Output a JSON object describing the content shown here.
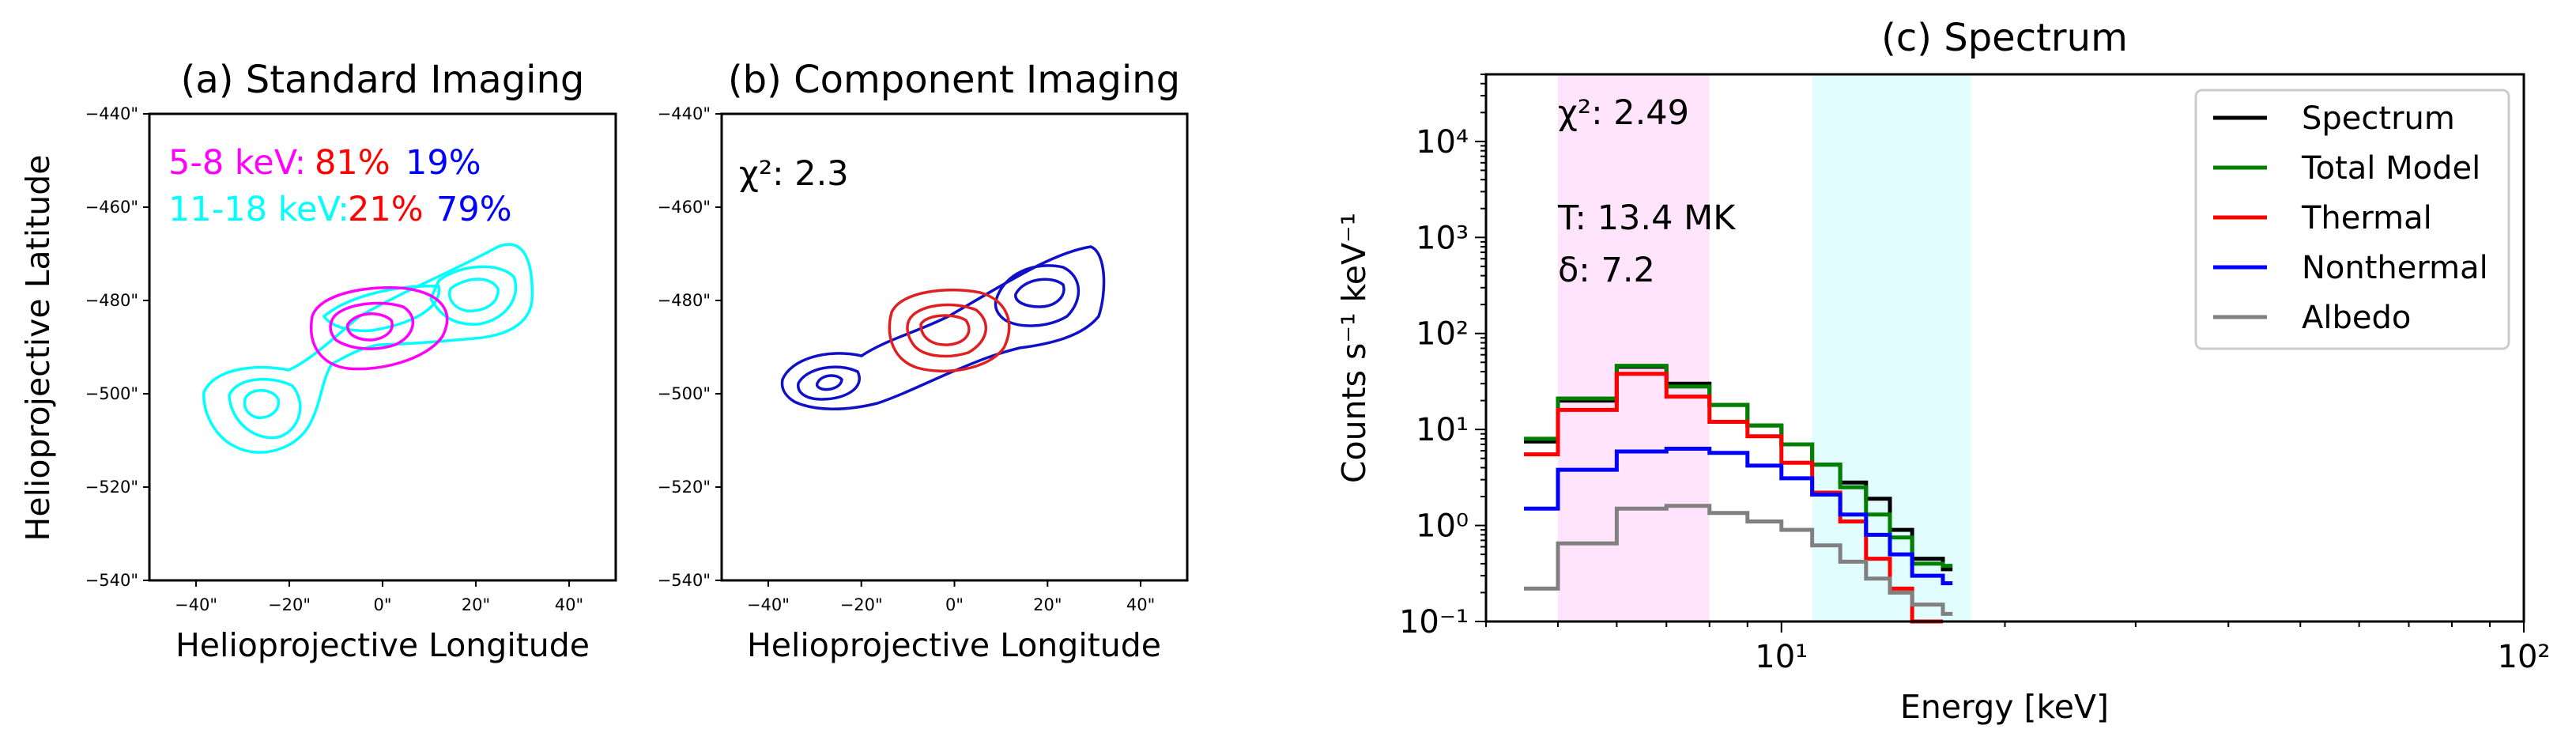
{
  "chart_data": [
    {
      "type": "contour",
      "title": "(a) Standard Imaging",
      "xlabel": "Helioprojective Longitude",
      "ylabel": "Helioprojective Latitude",
      "xlim": [
        -50,
        50
      ],
      "ylim": [
        -540,
        -440
      ],
      "xticks": [
        "−40\"",
        "−20\"",
        "0\"",
        "20\"",
        "40\""
      ],
      "yticks": [
        "−440\"",
        "−460\"",
        "−480\"",
        "−500\"",
        "−520\"",
        "−540\""
      ],
      "annotations": [
        {
          "label": "5-8 keV:",
          "thermal": "81%",
          "nonthermal": "19%"
        },
        {
          "label": "11-18 keV:",
          "thermal": "21%",
          "nonthermal": "79%"
        }
      ],
      "colors": {
        "low_band": "#ff00ff",
        "high_band": "#00ffff",
        "thermal": "#ff0000",
        "nonthermal": "#0000ff"
      }
    },
    {
      "type": "contour",
      "title": "(b) Component Imaging",
      "xlabel": "Helioprojective Longitude",
      "xlim": [
        -50,
        50
      ],
      "ylim": [
        -540,
        -440
      ],
      "xticks": [
        "−40\"",
        "−20\"",
        "0\"",
        "20\"",
        "40\""
      ],
      "yticks": [
        "−440\"",
        "−460\"",
        "−480\"",
        "−500\"",
        "−520\"",
        "−540\""
      ],
      "chi2_label": "χ²: 2.3",
      "colors": {
        "thermal": "#e02020",
        "nonthermal": "#1010c8"
      }
    },
    {
      "type": "line",
      "title": "(c) Spectrum",
      "xlabel": "Energy [keV]",
      "ylabel": "Counts s⁻¹ keV⁻¹",
      "xscale": "log",
      "yscale": "log",
      "xlim": [
        4,
        100
      ],
      "ylim": [
        0.1,
        50000
      ],
      "xticks": [
        {
          "value": 10,
          "label": "10¹"
        },
        {
          "value": 100,
          "label": "10²"
        }
      ],
      "yticks": [
        {
          "value": 0.1,
          "label": "10⁻¹"
        },
        {
          "value": 1,
          "label": "10⁰"
        },
        {
          "value": 10,
          "label": "10¹"
        },
        {
          "value": 100,
          "label": "10²"
        },
        {
          "value": 1000,
          "label": "10³"
        },
        {
          "value": 10000,
          "label": "10⁴"
        }
      ],
      "bands": [
        {
          "range": [
            5,
            8
          ],
          "color": "#ffe4fb"
        },
        {
          "range": [
            11,
            18
          ],
          "color": "#e2fdfd"
        }
      ],
      "annotations": [
        "χ²: 2.49",
        "T: 13.4 MK",
        "δ: 7.2"
      ],
      "legend_position": "upper-right",
      "bin_edges": [
        4.5,
        5,
        6,
        7,
        8,
        9,
        10,
        11,
        12,
        13,
        14,
        15,
        16.5,
        17
      ],
      "series": [
        {
          "name": "Spectrum",
          "color": "#000000",
          "values": [
            7.5,
            20,
            45,
            30,
            18,
            11,
            7,
            4.3,
            2.8,
            1.9,
            0.9,
            0.45,
            0.35
          ]
        },
        {
          "name": "Total Model",
          "color": "#008000",
          "values": [
            8,
            21,
            46,
            28,
            18,
            11,
            7,
            4.3,
            2.5,
            1.3,
            0.75,
            0.4,
            0.38
          ]
        },
        {
          "name": "Thermal",
          "color": "#ff0000",
          "values": [
            5.5,
            16,
            38,
            22,
            12,
            8.5,
            4.5,
            2.2,
            1.1,
            0.45,
            0.22,
            0.1,
            null
          ]
        },
        {
          "name": "Nonthermal",
          "color": "#0000ff",
          "values": [
            1.5,
            3.8,
            5.9,
            6.3,
            5.7,
            4.2,
            3.1,
            2.1,
            1.3,
            0.8,
            0.5,
            0.3,
            0.25
          ]
        },
        {
          "name": "Albedo",
          "color": "#808080",
          "values": [
            0.22,
            0.65,
            1.5,
            1.6,
            1.35,
            1.1,
            0.9,
            0.62,
            0.42,
            0.28,
            0.2,
            0.15,
            0.12
          ]
        }
      ]
    }
  ]
}
